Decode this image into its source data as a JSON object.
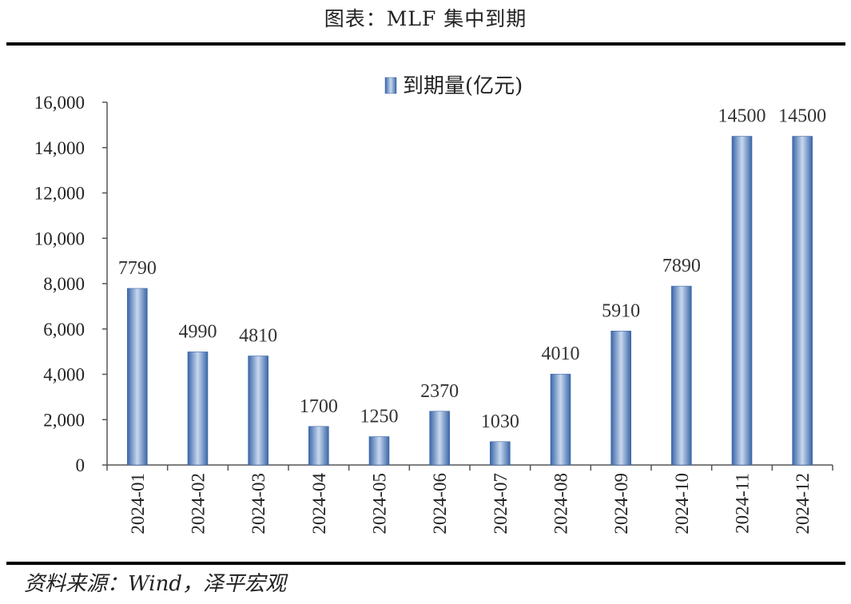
{
  "caption": "图表：MLF 集中到期",
  "source": "资料来源：Wind，泽平宏观",
  "colors": {
    "bar_edge": "#3a66a8",
    "bar_center": "#c8d8ee",
    "axis": "#555555"
  },
  "chart_data": {
    "type": "bar",
    "categories": [
      "2024-01",
      "2024-02",
      "2024-03",
      "2024-04",
      "2024-05",
      "2024-06",
      "2024-07",
      "2024-08",
      "2024-09",
      "2024-10",
      "2024-11",
      "2024-12"
    ],
    "series": [
      {
        "name": "到期量(亿元)",
        "values": [
          7790,
          4990,
          4810,
          1700,
          1250,
          2370,
          1030,
          4010,
          5910,
          7890,
          14500,
          14500
        ]
      }
    ],
    "data_labels": [
      "7790",
      "4990",
      "4810",
      "1700",
      "1250",
      "2370",
      "1030",
      "4010",
      "5910",
      "7890",
      "14500",
      "14500"
    ],
    "ylim": [
      0,
      16000
    ],
    "yticks": [
      0,
      2000,
      4000,
      6000,
      8000,
      10000,
      12000,
      14000,
      16000
    ],
    "ytick_labels": [
      "0",
      "2,000",
      "4,000",
      "6,000",
      "8,000",
      "10,000",
      "12,000",
      "14,000",
      "16,000"
    ],
    "legend": "top-center",
    "grid": false
  }
}
